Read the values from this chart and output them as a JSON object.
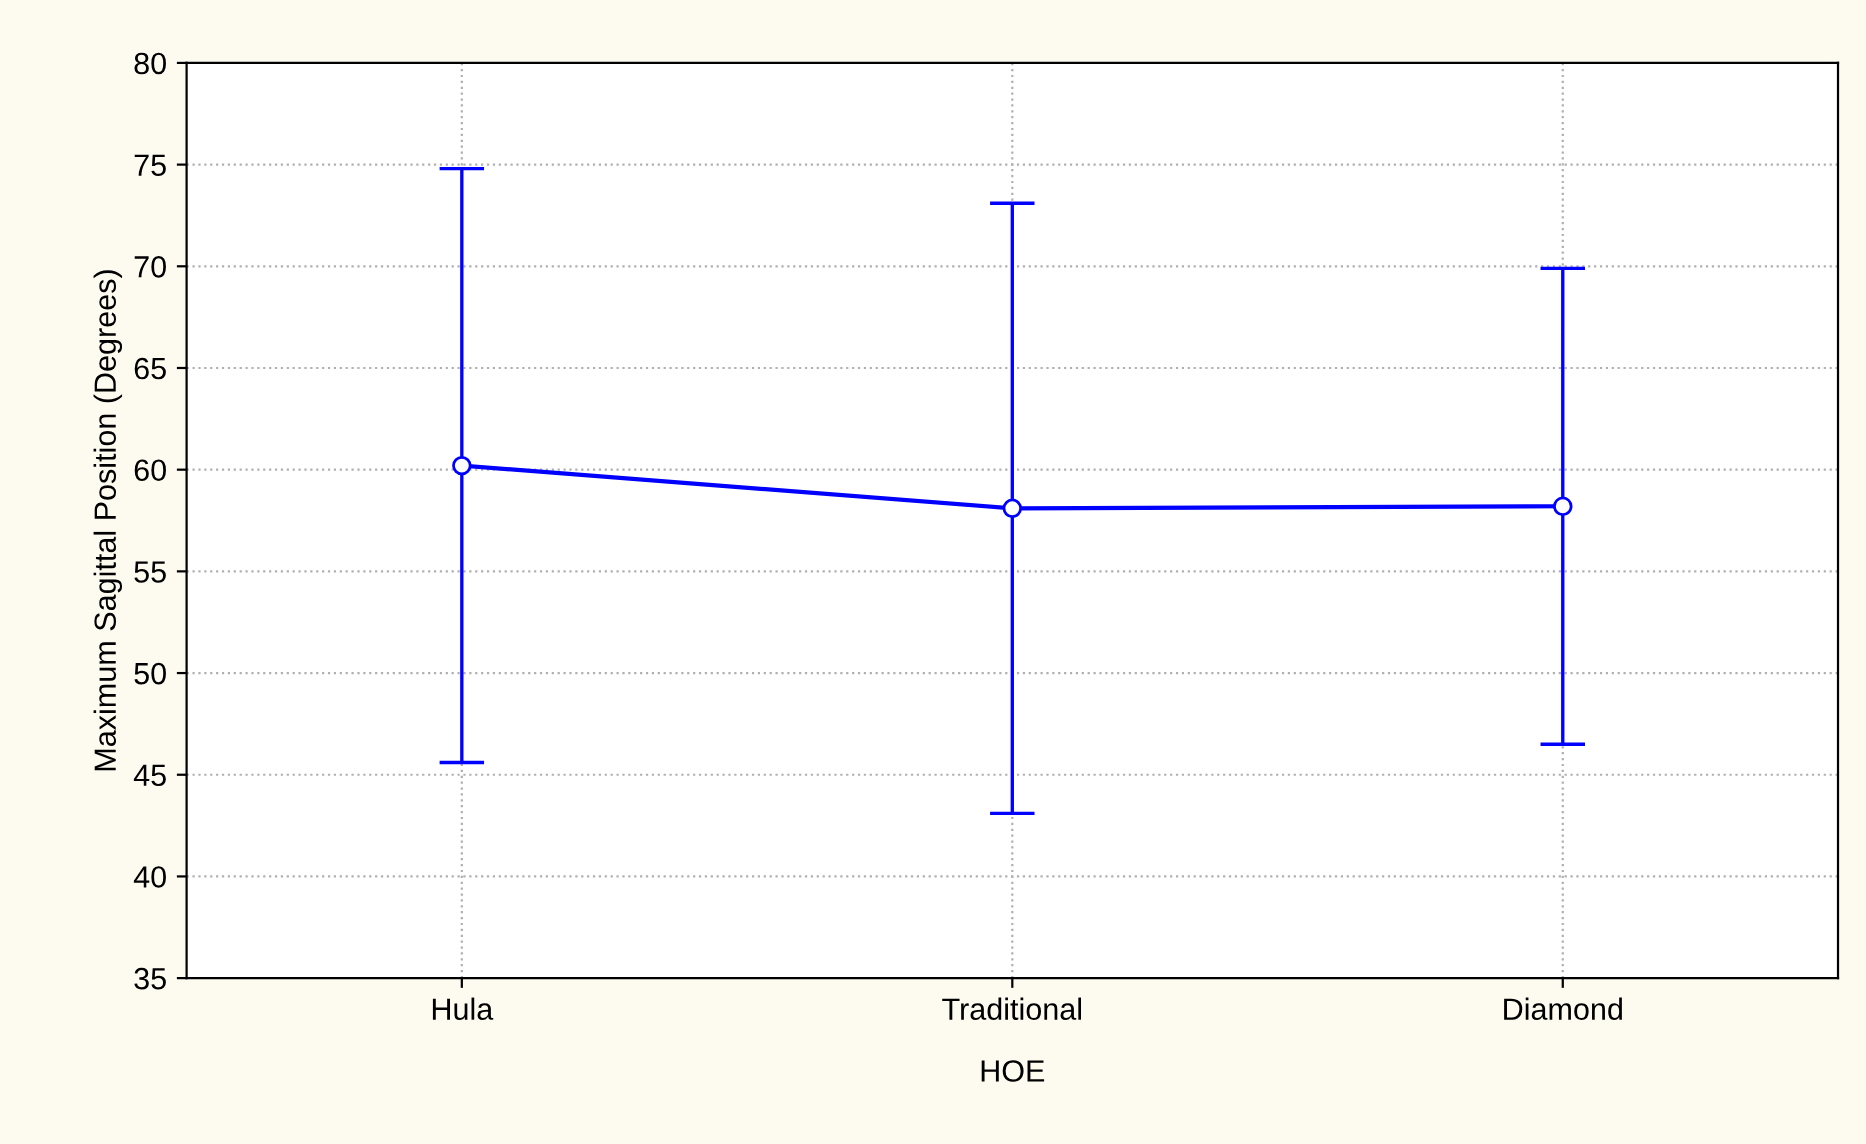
{
  "chart_data": {
    "type": "line",
    "xlabel": "HOE",
    "ylabel": "Maximum Sagittal Position (Degrees)",
    "categories": [
      "Hula",
      "Traditional",
      "Diamond"
    ],
    "series": [
      {
        "color": "#0000ff",
        "values": [
          60.2,
          58.1,
          58.2
        ],
        "errors": [
          14.6,
          15.0,
          11.7
        ]
      }
    ],
    "ylim": [
      35,
      80
    ],
    "yticks": [
      35,
      40,
      45,
      50,
      55,
      60,
      65,
      70,
      75,
      80
    ],
    "grid": true,
    "marker": "circle",
    "line_style": "solid"
  }
}
